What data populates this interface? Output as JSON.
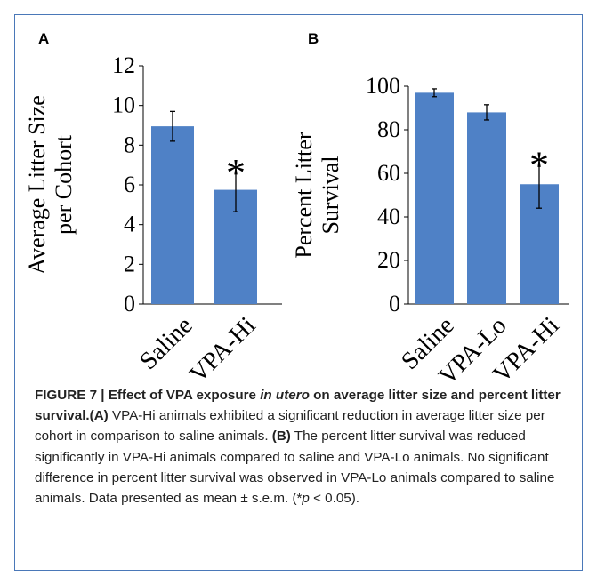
{
  "panel_labels": {
    "a": "A",
    "b": "B"
  },
  "significance_marker": "*",
  "colors": {
    "bar": "#4f81c6",
    "axis": "#000000",
    "frame": "#4a78b8"
  },
  "chart_data": [
    {
      "type": "bar",
      "panel": "A",
      "categories": [
        "Saline",
        "VPA-Hi"
      ],
      "values": [
        8.95,
        5.75
      ],
      "errors": [
        0.75,
        1.1
      ],
      "significant": [
        false,
        true
      ],
      "ylabel_lines": [
        "Average Litter Size",
        "per Cohort"
      ],
      "ylim": [
        0,
        12
      ],
      "yticks": [
        "0",
        "2",
        "4",
        "6",
        "8",
        "10",
        "12"
      ],
      "grid": false,
      "legend": "none"
    },
    {
      "type": "bar",
      "panel": "B",
      "categories": [
        "Saline",
        "VPA-Lo",
        "VPA-Hi"
      ],
      "values": [
        97,
        88,
        55
      ],
      "errors": [
        1.8,
        3.5,
        11
      ],
      "significant": [
        false,
        false,
        true
      ],
      "ylabel_lines": [
        "Percent Litter",
        "Survival"
      ],
      "ylim": [
        0,
        100
      ],
      "yticks": [
        "0",
        "20",
        "40",
        "60",
        "80",
        "100"
      ],
      "grid": false,
      "legend": "none"
    }
  ],
  "caption": {
    "title_pre": "FIGURE 7 | Effect of VPA exposure ",
    "title_italic": "in utero",
    "title_post": " on average litter size and percent litter survival.",
    "a_label": "(A)",
    "a_text": " VPA-Hi animals exhibited a significant reduction in average litter size per cohort in comparison to saline animals. ",
    "b_label": "(B)",
    "b_text": " The percent litter survival was reduced significantly in VPA-Hi animals compared to saline and VPA-Lo animals. No significant difference in percent litter survival was observed in VPA-Lo animals compared to saline animals. Data presented as mean ± s.e.m. (*",
    "p_symbol": "p",
    "p_text": " < 0.05)."
  }
}
